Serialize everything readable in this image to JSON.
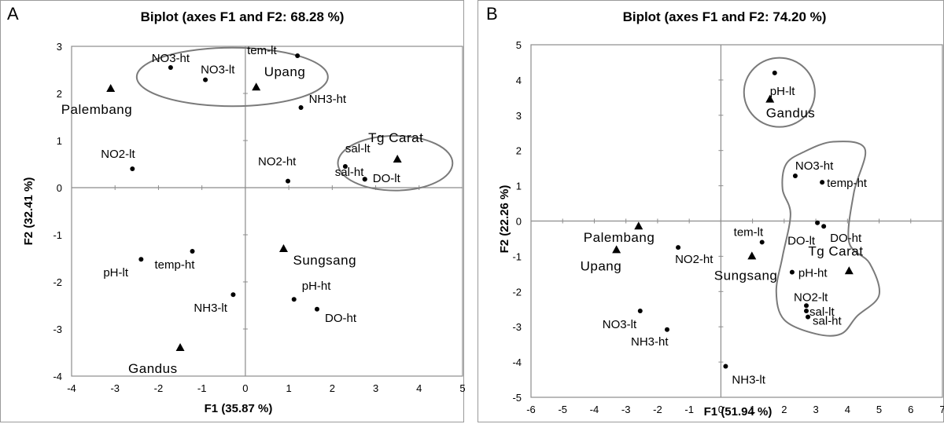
{
  "chart_data": [
    {
      "panel": "A",
      "type": "scatter",
      "title": "Biplot (axes F1 and F2: 68.28 %)",
      "xlabel": "F1 (35.87 %)",
      "ylabel": "F2 (32.41 %)",
      "xlim": [
        -4,
        5
      ],
      "ylim": [
        -4,
        3
      ],
      "xticks": [
        "-4",
        "-3",
        "-2",
        "-1",
        "0",
        "1",
        "2",
        "3",
        "4",
        "5"
      ],
      "yticks": [
        "3",
        "2",
        "1",
        "0",
        "-1",
        "-2",
        "-3",
        "-4"
      ],
      "grid": false,
      "variables": [
        {
          "label": "NO3-ht",
          "x": -1.72,
          "y": 2.55
        },
        {
          "label": "NO3-lt",
          "x": -0.92,
          "y": 2.29
        },
        {
          "label": "tem-lt",
          "x": 1.2,
          "y": 2.8
        },
        {
          "label": "NH3-ht",
          "x": 1.28,
          "y": 1.7
        },
        {
          "label": "NO2-lt",
          "x": -2.6,
          "y": 0.4
        },
        {
          "label": "NO2-ht",
          "x": 0.98,
          "y": 0.14
        },
        {
          "label": "sal-lt",
          "x": 2.3,
          "y": 0.45
        },
        {
          "label": "sal-ht",
          "x": 2.75,
          "y": 0.18
        },
        {
          "label": "DO-lt",
          "x": 2.75,
          "y": 0.18
        },
        {
          "label": "pH-lt",
          "x": -2.4,
          "y": -1.52
        },
        {
          "label": "temp-ht",
          "x": -1.22,
          "y": -1.35
        },
        {
          "label": "NH3-lt",
          "x": -0.28,
          "y": -2.27
        },
        {
          "label": "pH-ht",
          "x": 1.12,
          "y": -2.37
        },
        {
          "label": "DO-ht",
          "x": 1.65,
          "y": -2.58
        }
      ],
      "sites": [
        {
          "label": "Palembang",
          "x": -3.1,
          "y": 2.1
        },
        {
          "label": "Upang",
          "x": 0.25,
          "y": 2.13
        },
        {
          "label": "Tg Carat",
          "x": 3.5,
          "y": 0.6
        },
        {
          "label": "Sungsang",
          "x": 0.88,
          "y": -1.3
        },
        {
          "label": "Gandus",
          "x": -1.5,
          "y": -3.4
        }
      ],
      "groups": [
        {
          "cx": -0.3,
          "cy": 2.35,
          "rx": 2.2,
          "ry": 0.62
        },
        {
          "cx": 3.45,
          "cy": 0.52,
          "rx": 1.32,
          "ry": 0.58
        }
      ]
    },
    {
      "panel": "B",
      "type": "scatter",
      "title": "Biplot (axes F1 and F2: 74.20 %)",
      "xlabel": "F1 (51.94 %)",
      "ylabel": "F2 (22.26 %)",
      "xlim": [
        -6,
        7
      ],
      "ylim": [
        -5,
        5
      ],
      "xticks": [
        "-6",
        "-5",
        "-4",
        "-3",
        "-2",
        "-1",
        "0",
        "1",
        "2",
        "3",
        "4",
        "5",
        "6",
        "7"
      ],
      "yticks": [
        "5",
        "4",
        "3",
        "2",
        "1",
        "0",
        "-1",
        "-2",
        "-3",
        "-4",
        "-5"
      ],
      "grid": false,
      "variables": [
        {
          "label": "pH-lt",
          "x": 1.7,
          "y": 4.2
        },
        {
          "label": "NO3-ht",
          "x": 2.35,
          "y": 1.28
        },
        {
          "label": "temp-ht",
          "x": 3.2,
          "y": 1.1
        },
        {
          "label": "DO-lt",
          "x": 3.05,
          "y": -0.05
        },
        {
          "label": "DO-ht",
          "x": 3.25,
          "y": -0.15
        },
        {
          "label": "tem-lt",
          "x": 1.3,
          "y": -0.6
        },
        {
          "label": "pH-ht",
          "x": 2.25,
          "y": -1.45
        },
        {
          "label": "NO2-lt",
          "x": 2.7,
          "y": -2.4
        },
        {
          "label": "sal-lt",
          "x": 2.7,
          "y": -2.55
        },
        {
          "label": "sal-ht",
          "x": 2.75,
          "y": -2.72
        },
        {
          "label": "NO2-ht",
          "x": -1.35,
          "y": -0.75
        },
        {
          "label": "NO3-lt",
          "x": -2.55,
          "y": -2.55
        },
        {
          "label": "NH3-ht",
          "x": -1.7,
          "y": -3.08
        },
        {
          "label": "NH3-lt",
          "x": 0.15,
          "y": -4.12
        }
      ],
      "sites": [
        {
          "label": "Gandus",
          "x": 1.55,
          "y": 3.45
        },
        {
          "label": "Palembang",
          "x": -2.6,
          "y": -0.15
        },
        {
          "label": "Upang",
          "x": -3.3,
          "y": -0.82
        },
        {
          "label": "Sungsang",
          "x": 0.98,
          "y": -1.0
        },
        {
          "label": "Tg Carat",
          "x": 4.05,
          "y": -1.42
        }
      ],
      "groups": [
        {
          "cx": 1.85,
          "cy": 3.65,
          "rx": 1.12,
          "ry": 0.98
        }
      ]
    }
  ]
}
